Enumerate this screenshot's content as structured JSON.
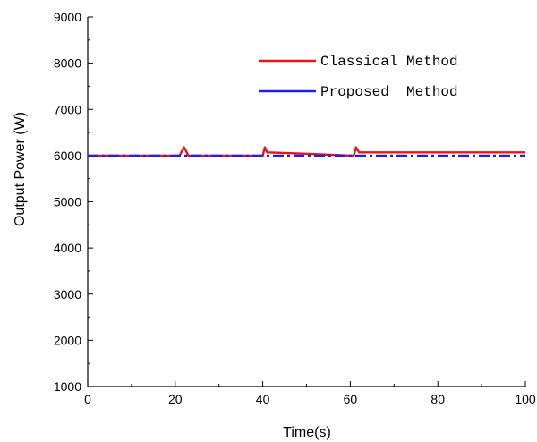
{
  "chart_data": {
    "type": "line",
    "xlabel": "Time(s)",
    "ylabel": "Output Power (W)",
    "xlim": [
      0,
      100
    ],
    "ylim": [
      1000,
      9000
    ],
    "x_ticks": [
      "0",
      "20",
      "40",
      "60",
      "80",
      "100"
    ],
    "y_ticks": [
      "1000",
      "2000",
      "3000",
      "4000",
      "5000",
      "6000",
      "7000",
      "8000",
      "9000"
    ],
    "grid": false,
    "legend_position": "top-right",
    "series": [
      {
        "name": "Classical Method",
        "color": "#e8141b",
        "style": "solid",
        "x": [
          0,
          21,
          22,
          23,
          40,
          40.5,
          41,
          50,
          60,
          60.8,
          61.3,
          62,
          100
        ],
        "y": [
          6000,
          6000,
          6180,
          6000,
          6000,
          6180,
          6070,
          6040,
          6000,
          6000,
          6180,
          6070,
          6070
        ]
      },
      {
        "name": "Proposed  Method",
        "color": "#1f1fe8",
        "style": "dashdot",
        "x": [
          0,
          100
        ],
        "y": [
          6000,
          6000
        ]
      }
    ]
  }
}
